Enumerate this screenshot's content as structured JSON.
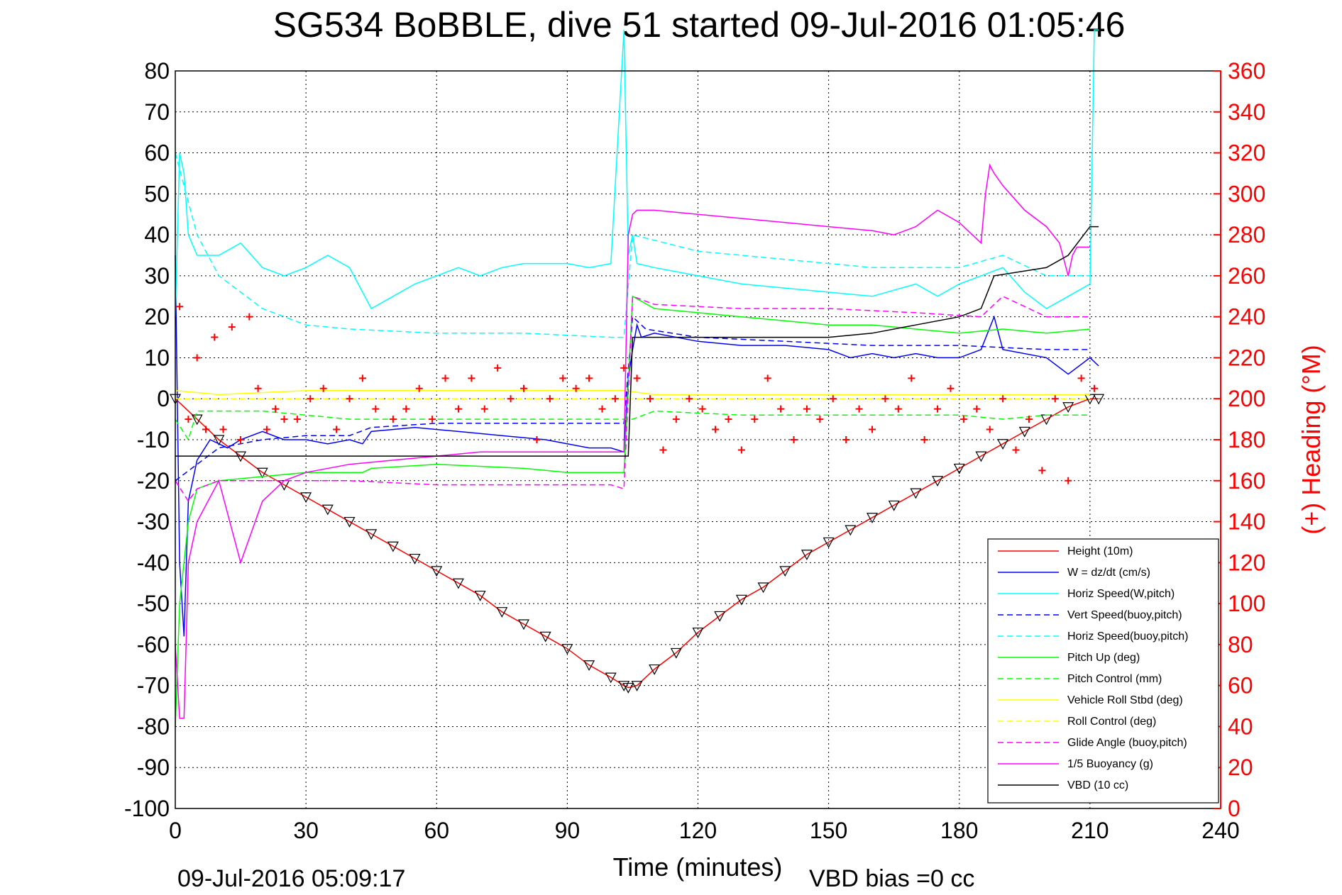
{
  "page": {
    "title": "SG534 BoBBLE, dive 51 started 09-Jul-2016 01:05:46",
    "footer_timestamp": "09-Jul-2016 05:09:17",
    "footer_vbd_bias": "VBD bias =0 cc"
  },
  "chart_data": {
    "type": "line",
    "title": "SG534 BoBBLE, dive 51 started 09-Jul-2016 01:05:46",
    "xlabel": "Time (minutes)",
    "ylabel": "",
    "y2label": "(+) Heading (°M)",
    "xlim": [
      0,
      240
    ],
    "ylim": [
      -100,
      80
    ],
    "y2lim": [
      0,
      360
    ],
    "xticks": [
      0,
      30,
      60,
      90,
      120,
      150,
      180,
      210,
      240
    ],
    "yticks": [
      80,
      70,
      60,
      50,
      40,
      30,
      20,
      10,
      0,
      -10,
      -20,
      -30,
      -40,
      -50,
      -60,
      -70,
      -80,
      -90,
      -100
    ],
    "y2ticks": [
      360,
      340,
      320,
      300,
      280,
      260,
      240,
      220,
      200,
      180,
      160,
      140,
      120,
      100,
      80,
      60,
      40,
      20,
      0
    ],
    "grid": true,
    "legend_position": "bottom-right",
    "series": [
      {
        "name": "Height (10m)",
        "color": "#ff0000",
        "style": "solid",
        "x": [
          0,
          5,
          10,
          15,
          20,
          25,
          30,
          35,
          40,
          45,
          50,
          55,
          60,
          65,
          70,
          75,
          80,
          85,
          90,
          95,
          100,
          103,
          104,
          106,
          110,
          115,
          120,
          125,
          130,
          135,
          140,
          145,
          150,
          155,
          160,
          165,
          170,
          175,
          180,
          185,
          190,
          195,
          200,
          205,
          210,
          212
        ],
        "y": [
          0,
          -5,
          -10,
          -14,
          -18,
          -21,
          -24,
          -27,
          -30,
          -33,
          -36,
          -39,
          -42,
          -45,
          -48,
          -52,
          -55,
          -58,
          -61,
          -65,
          -68,
          -70,
          -70.5,
          -70,
          -66,
          -62,
          -57,
          -53,
          -49,
          -46,
          -42,
          -38,
          -35,
          -32,
          -29,
          -26,
          -23,
          -20,
          -17,
          -14,
          -11,
          -8,
          -5,
          -2,
          0,
          0
        ]
      },
      {
        "name": "W = dz/dt (cm/s)",
        "color": "#0000ff",
        "style": "solid",
        "x": [
          0,
          1,
          2,
          3,
          5,
          8,
          12,
          15,
          20,
          25,
          30,
          35,
          40,
          43,
          45,
          55,
          65,
          75,
          85,
          95,
          100,
          103,
          104,
          105,
          106,
          107,
          110,
          120,
          130,
          140,
          150,
          155,
          160,
          165,
          170,
          175,
          180,
          185,
          188,
          190,
          200,
          205,
          210,
          212
        ],
        "y": [
          35,
          -40,
          -58,
          -25,
          -15,
          -10,
          -12,
          -10,
          -8,
          -10,
          -10,
          -11,
          -10,
          -11,
          -8,
          -7,
          -8,
          -9,
          -10,
          -12,
          -12,
          -13,
          5,
          12,
          18,
          15,
          16,
          14,
          13,
          13,
          12,
          10,
          11,
          10,
          11,
          10,
          10,
          12,
          20,
          12,
          10,
          6,
          10,
          8
        ]
      },
      {
        "name": "Horiz Speed(W,pitch)",
        "color": "#00ffff",
        "style": "solid",
        "x": [
          0,
          1,
          2,
          3,
          5,
          10,
          15,
          20,
          25,
          30,
          35,
          40,
          45,
          50,
          55,
          60,
          65,
          70,
          75,
          80,
          85,
          90,
          95,
          100,
          103,
          104,
          105,
          106,
          110,
          120,
          130,
          140,
          150,
          160,
          170,
          175,
          180,
          185,
          190,
          195,
          200,
          205,
          210,
          211,
          212
        ],
        "y": [
          20,
          60,
          55,
          40,
          35,
          35,
          38,
          32,
          30,
          32,
          35,
          32,
          22,
          25,
          28,
          30,
          32,
          30,
          32,
          33,
          33,
          33,
          32,
          33,
          90,
          35,
          40,
          33,
          32,
          30,
          28,
          27,
          26,
          25,
          28,
          25,
          28,
          30,
          32,
          26,
          22,
          25,
          28,
          90,
          90
        ]
      },
      {
        "name": "Vert Speed(buoy,pitch)",
        "color": "#0000ff",
        "style": "dashed",
        "x": [
          0,
          10,
          20,
          30,
          40,
          45,
          60,
          80,
          100,
          103,
          105,
          108,
          120,
          140,
          160,
          180,
          200,
          210
        ],
        "y": [
          -20,
          -12,
          -10,
          -9,
          -9,
          -7,
          -6,
          -6,
          -6,
          -6,
          20,
          17,
          15,
          14,
          13,
          13,
          12,
          12
        ]
      },
      {
        "name": "Horiz Speed(buoy,pitch)",
        "color": "#00ffff",
        "style": "dashed",
        "x": [
          0,
          5,
          10,
          20,
          30,
          40,
          60,
          80,
          100,
          103,
          105,
          120,
          140,
          160,
          180,
          190,
          200,
          210
        ],
        "y": [
          60,
          40,
          30,
          22,
          18,
          17,
          16,
          16,
          15,
          15,
          40,
          36,
          34,
          32,
          32,
          35,
          30,
          30
        ]
      },
      {
        "name": "Pitch Up (deg)",
        "color": "#00ff00",
        "style": "solid",
        "x": [
          0,
          1,
          3,
          5,
          10,
          20,
          30,
          43,
          45,
          60,
          80,
          90,
          95,
          100,
          103,
          105,
          110,
          120,
          130,
          140,
          150,
          160,
          170,
          180,
          190,
          200,
          210
        ],
        "y": [
          -80,
          -50,
          -30,
          -22,
          -20,
          -19,
          -18,
          -18,
          -17,
          -16,
          -17,
          -18,
          -18,
          -18,
          -18,
          25,
          22,
          21,
          20,
          19,
          18,
          18,
          17,
          16,
          17,
          16,
          17
        ]
      },
      {
        "name": "Pitch Control (mm)",
        "color": "#00ff00",
        "style": "dashed",
        "x": [
          0,
          3,
          5,
          20,
          40,
          60,
          80,
          100,
          103,
          105,
          110,
          130,
          150,
          170,
          180,
          190,
          200,
          210
        ],
        "y": [
          -5,
          -10,
          -3,
          -3,
          -5,
          -5,
          -5,
          -5,
          -5,
          -5,
          -3,
          -4,
          -4,
          -4,
          -4,
          -5,
          -4,
          -4
        ]
      },
      {
        "name": "Vehicle Roll Stbd (deg)",
        "color": "#ffff00",
        "style": "solid",
        "x": [
          0,
          10,
          30,
          60,
          90,
          103,
          110,
          140,
          170,
          200,
          210
        ],
        "y": [
          2,
          1,
          2,
          2,
          2,
          2,
          1,
          1,
          1,
          1,
          1
        ]
      },
      {
        "name": "Roll Control (deg)",
        "color": "#ffff00",
        "style": "dashed",
        "x": [
          0,
          10,
          30,
          60,
          90,
          103,
          110,
          140,
          170,
          200,
          210
        ],
        "y": [
          0,
          0,
          0,
          0,
          0,
          0,
          0,
          0,
          0,
          0,
          0
        ]
      },
      {
        "name": "Glide Angle (buoy,pitch)",
        "color": "#ff00ff",
        "style": "dashed",
        "x": [
          0,
          3,
          5,
          10,
          20,
          30,
          40,
          60,
          80,
          100,
          103,
          105,
          110,
          130,
          150,
          170,
          185,
          190,
          200,
          205,
          210
        ],
        "y": [
          -20,
          -25,
          -22,
          -20,
          -20,
          -20,
          -20,
          -21,
          -21,
          -21,
          -22,
          25,
          23,
          22,
          22,
          21,
          20,
          25,
          20,
          20,
          20
        ]
      },
      {
        "name": "1/5 Buoyancy (g)",
        "color": "#ff00ff",
        "style": "solid",
        "x": [
          0,
          1,
          2,
          3,
          5,
          10,
          15,
          20,
          25,
          30,
          40,
          50,
          60,
          70,
          80,
          90,
          100,
          103,
          104,
          105,
          106,
          110,
          120,
          130,
          140,
          150,
          160,
          165,
          170,
          175,
          180,
          185,
          186,
          187,
          188,
          190,
          195,
          200,
          203,
          205,
          206,
          207,
          210
        ],
        "y": [
          -60,
          -78,
          -78,
          -40,
          -30,
          -20,
          -40,
          -25,
          -20,
          -18,
          -16,
          -15,
          -14,
          -13,
          -13,
          -13,
          -13,
          -13,
          40,
          45,
          46,
          46,
          45,
          44,
          43,
          42,
          41,
          40,
          42,
          46,
          43,
          38,
          50,
          57,
          55,
          52,
          46,
          42,
          38,
          30,
          35,
          37,
          37
        ]
      },
      {
        "name": "VBD (10 cc)",
        "color": "#000000",
        "style": "solid",
        "x": [
          0,
          1,
          2,
          103,
          104,
          105,
          106,
          150,
          160,
          170,
          180,
          185,
          188,
          200,
          205,
          210,
          212
        ],
        "y": [
          -14,
          -14,
          -14,
          -14,
          -14,
          15,
          15,
          15,
          16,
          18,
          20,
          22,
          30,
          32,
          35,
          42,
          42
        ]
      },
      {
        "name": "Heading",
        "color": "#ff0000",
        "style": "markers",
        "x": [
          1,
          3,
          5,
          7,
          9,
          11,
          13,
          15,
          17,
          19,
          21,
          23,
          25,
          28,
          31,
          34,
          37,
          40,
          43,
          46,
          50,
          53,
          56,
          59,
          62,
          65,
          68,
          71,
          74,
          77,
          80,
          83,
          86,
          89,
          92,
          95,
          98,
          101,
          103,
          106,
          109,
          112,
          115,
          118,
          121,
          124,
          127,
          130,
          133,
          136,
          139,
          142,
          145,
          148,
          151,
          154,
          157,
          160,
          163,
          166,
          169,
          172,
          175,
          178,
          181,
          184,
          187,
          190,
          193,
          196,
          199,
          202,
          205,
          208,
          211
        ],
        "y": [
          245,
          190,
          220,
          185,
          230,
          185,
          235,
          180,
          240,
          205,
          185,
          195,
          190,
          190,
          200,
          205,
          185,
          200,
          210,
          195,
          190,
          195,
          205,
          190,
          210,
          195,
          210,
          195,
          215,
          200,
          205,
          180,
          200,
          210,
          205,
          210,
          195,
          200,
          215,
          210,
          200,
          175,
          190,
          200,
          195,
          185,
          190,
          175,
          190,
          210,
          195,
          180,
          195,
          190,
          200,
          180,
          195,
          185,
          200,
          195,
          210,
          180,
          195,
          205,
          190,
          195,
          185,
          200,
          175,
          190,
          165,
          200,
          160,
          210,
          205
        ]
      }
    ]
  }
}
